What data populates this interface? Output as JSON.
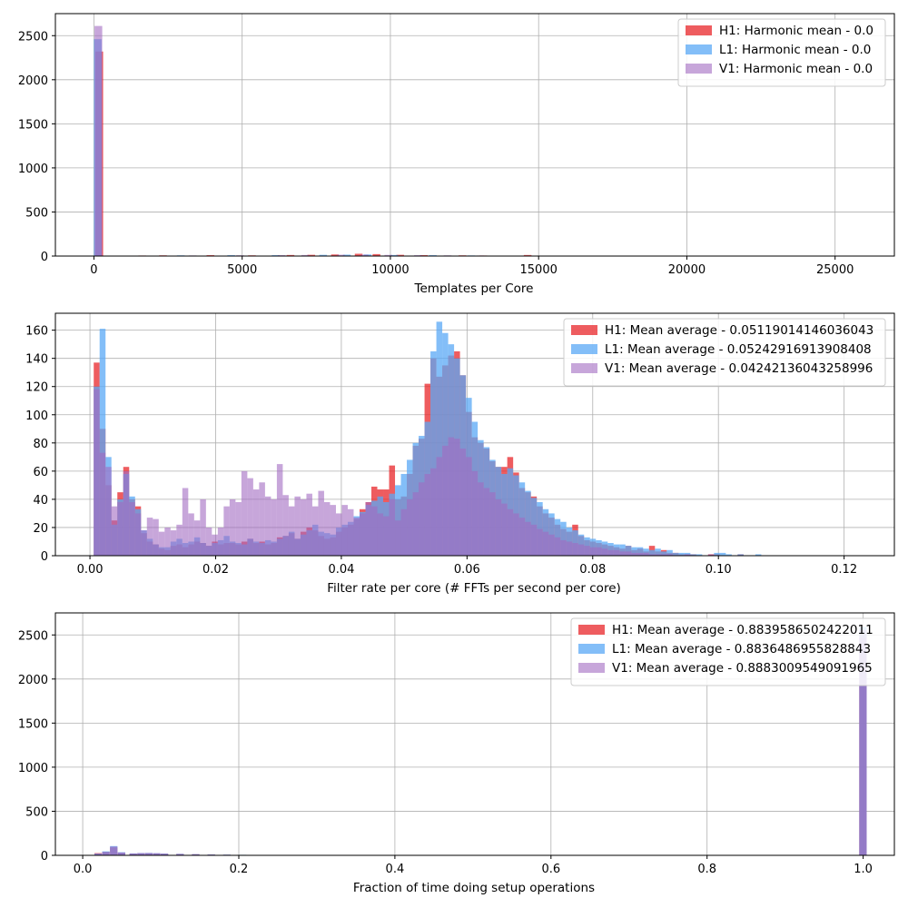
{
  "colors": {
    "H1": "#e8262a",
    "L1": "#5aa8f6",
    "V1": "#a26ac2"
  },
  "chart_data": [
    {
      "type": "bar",
      "xlabel": "Templates per Core",
      "xlim": [
        -1300,
        27000
      ],
      "ylim": [
        0,
        2750
      ],
      "xticks": [
        0,
        5000,
        10000,
        15000,
        20000,
        25000
      ],
      "yticks": [
        0,
        500,
        1000,
        1500,
        2000,
        2500
      ],
      "grid": true,
      "legend": "top-right",
      "bin_width": 260,
      "series": [
        {
          "name": "H1: Harmonic mean  - 0.0",
          "color": "H1",
          "bins": [
            [
              50,
              2320
            ],
            [
              1500,
              6
            ],
            [
              2200,
              8
            ],
            [
              3800,
              10
            ],
            [
              5200,
              8
            ],
            [
              6500,
              12
            ],
            [
              7200,
              14
            ],
            [
              8000,
              18
            ],
            [
              8800,
              26
            ],
            [
              9400,
              22
            ],
            [
              10200,
              14
            ],
            [
              11000,
              10
            ],
            [
              12300,
              8
            ],
            [
              13000,
              6
            ],
            [
              14500,
              12
            ]
          ]
        },
        {
          "name": "L1: Harmonic mean  - 0.0",
          "color": "L1",
          "bins": [
            [
              0,
              2460
            ],
            [
              1600,
              5
            ],
            [
              2800,
              8
            ],
            [
              4500,
              10
            ],
            [
              6000,
              10
            ],
            [
              7600,
              14
            ],
            [
              8400,
              16
            ],
            [
              9100,
              18
            ],
            [
              10000,
              12
            ],
            [
              11300,
              10
            ],
            [
              12600,
              7
            ],
            [
              13500,
              5
            ]
          ]
        },
        {
          "name": "V1: Harmonic mean  - 0.0",
          "color": "V1",
          "bins": [
            [
              20,
              2610
            ],
            [
              1900,
              5
            ],
            [
              3200,
              7
            ],
            [
              4800,
              9
            ],
            [
              6200,
              11
            ],
            [
              7000,
              12
            ],
            [
              8200,
              15
            ],
            [
              9000,
              16
            ],
            [
              9800,
              13
            ],
            [
              10800,
              10
            ],
            [
              11800,
              8
            ],
            [
              12900,
              6
            ]
          ]
        }
      ]
    },
    {
      "type": "bar",
      "xlabel": "Filter rate per core (# FFTs per second per core)",
      "xlim": [
        -0.0055,
        0.128
      ],
      "ylim": [
        0,
        172
      ],
      "xticks": [
        0.0,
        0.02,
        0.04,
        0.06,
        0.08,
        0.1,
        0.12
      ],
      "yticks": [
        0,
        20,
        40,
        60,
        80,
        100,
        120,
        140,
        160
      ],
      "grid": true,
      "legend": "top-right",
      "bin_width": 0.00094,
      "series": [
        {
          "name": "H1: Mean average - 0.05119014146036043",
          "color": "H1",
          "x_start": 0.0006,
          "values": [
            137,
            90,
            50,
            25,
            45,
            63,
            40,
            35,
            16,
            10,
            8,
            5,
            4,
            7,
            8,
            6,
            8,
            10,
            9,
            7,
            10,
            8,
            9,
            9,
            8,
            10,
            12,
            9,
            10,
            8,
            9,
            13,
            14,
            16,
            12,
            17,
            20,
            18,
            14,
            12,
            13,
            17,
            20,
            22,
            26,
            33,
            38,
            49,
            47,
            47,
            64,
            40,
            42,
            58,
            78,
            83,
            122,
            140,
            127,
            135,
            142,
            145,
            128,
            102,
            84,
            80,
            76,
            67,
            63,
            63,
            70,
            59,
            48,
            45,
            42,
            35,
            30,
            27,
            22,
            19,
            17,
            22,
            14,
            11,
            10,
            9,
            8,
            7,
            6,
            5,
            7,
            4,
            5,
            3,
            7,
            3,
            4,
            2,
            2,
            1,
            1,
            1,
            0,
            0,
            1,
            1,
            0,
            0,
            0,
            1,
            0
          ]
        },
        {
          "name": "L1: Mean average - 0.05242916913908408",
          "color": "L1",
          "x_start": 0.0006,
          "values": [
            120,
            161,
            70,
            22,
            40,
            58,
            42,
            33,
            18,
            12,
            8,
            6,
            6,
            10,
            12,
            9,
            10,
            13,
            9,
            7,
            9,
            11,
            14,
            10,
            9,
            8,
            12,
            10,
            9,
            11,
            10,
            12,
            14,
            17,
            12,
            15,
            18,
            22,
            17,
            16,
            15,
            20,
            22,
            24,
            28,
            31,
            36,
            39,
            42,
            38,
            44,
            50,
            58,
            68,
            80,
            85,
            95,
            145,
            166,
            158,
            150,
            140,
            128,
            112,
            95,
            82,
            77,
            68,
            63,
            58,
            62,
            57,
            52,
            46,
            41,
            38,
            33,
            30,
            26,
            24,
            20,
            18,
            15,
            13,
            12,
            11,
            10,
            9,
            8,
            8,
            7,
            6,
            6,
            5,
            4,
            5,
            3,
            4,
            2,
            2,
            2,
            1,
            1,
            0,
            0,
            2,
            2,
            1,
            0,
            1,
            0,
            0,
            1
          ]
        },
        {
          "name": "V1: Mean average - 0.04242136043258996",
          "color": "V1",
          "x_start": 0.0006,
          "values": [
            118,
            73,
            63,
            35,
            38,
            60,
            38,
            30,
            18,
            27,
            26,
            17,
            20,
            18,
            22,
            48,
            30,
            25,
            40,
            20,
            15,
            20,
            35,
            40,
            38,
            60,
            55,
            47,
            52,
            42,
            40,
            65,
            43,
            35,
            42,
            40,
            44,
            35,
            46,
            38,
            36,
            30,
            36,
            33,
            27,
            30,
            38,
            35,
            30,
            28,
            40,
            25,
            33,
            40,
            45,
            52,
            58,
            62,
            70,
            78,
            84,
            83,
            76,
            70,
            60,
            52,
            48,
            45,
            40,
            37,
            33,
            30,
            27,
            24,
            22,
            19,
            17,
            15,
            13,
            11,
            10,
            9,
            8,
            7,
            6,
            6,
            5,
            4,
            4,
            3,
            3,
            2,
            2,
            2,
            1,
            1,
            1,
            1,
            0,
            0,
            1,
            0,
            0,
            0,
            1
          ]
        }
      ]
    },
    {
      "type": "bar",
      "xlabel": "Fraction of time doing setup operations",
      "xlim": [
        -0.035,
        1.04
      ],
      "ylim": [
        0,
        2750
      ],
      "xticks": [
        0.0,
        0.2,
        0.4,
        0.6,
        0.8,
        1.0
      ],
      "yticks": [
        0,
        500,
        1000,
        1500,
        2000,
        2500
      ],
      "grid": true,
      "legend": "top-right",
      "bin_width": 0.0095,
      "series": [
        {
          "name": "H1: Mean average - 0.8839586502422011",
          "color": "H1",
          "bins": [
            [
              0.015,
              25
            ],
            [
              0.025,
              40
            ],
            [
              0.035,
              90
            ],
            [
              0.045,
              30
            ],
            [
              0.06,
              20
            ],
            [
              0.07,
              24
            ],
            [
              0.08,
              25
            ],
            [
              0.09,
              22
            ],
            [
              0.1,
              18
            ],
            [
              0.12,
              16
            ],
            [
              0.14,
              12
            ],
            [
              0.16,
              9
            ],
            [
              0.18,
              6
            ],
            [
              0.2,
              5
            ],
            [
              0.25,
              3
            ],
            [
              0.995,
              2470
            ]
          ]
        },
        {
          "name": "L1: Mean average - 0.8836486955828843",
          "color": "L1",
          "bins": [
            [
              0.015,
              20
            ],
            [
              0.025,
              45
            ],
            [
              0.035,
              105
            ],
            [
              0.045,
              35
            ],
            [
              0.06,
              22
            ],
            [
              0.07,
              26
            ],
            [
              0.08,
              27
            ],
            [
              0.09,
              24
            ],
            [
              0.1,
              20
            ],
            [
              0.12,
              17
            ],
            [
              0.14,
              13
            ],
            [
              0.16,
              10
            ],
            [
              0.18,
              8
            ],
            [
              0.2,
              6
            ],
            [
              0.26,
              4
            ],
            [
              0.995,
              2590
            ]
          ]
        },
        {
          "name": "V1: Mean average - 0.8883009549091965",
          "color": "V1",
          "bins": [
            [
              0.015,
              18
            ],
            [
              0.025,
              38
            ],
            [
              0.035,
              100
            ],
            [
              0.045,
              32
            ],
            [
              0.06,
              21
            ],
            [
              0.07,
              25
            ],
            [
              0.08,
              26
            ],
            [
              0.09,
              23
            ],
            [
              0.1,
              19
            ],
            [
              0.12,
              15
            ],
            [
              0.14,
              12
            ],
            [
              0.16,
              9
            ],
            [
              0.18,
              7
            ],
            [
              0.2,
              5
            ],
            [
              0.25,
              3
            ],
            [
              0.995,
              2560
            ]
          ]
        }
      ]
    }
  ]
}
